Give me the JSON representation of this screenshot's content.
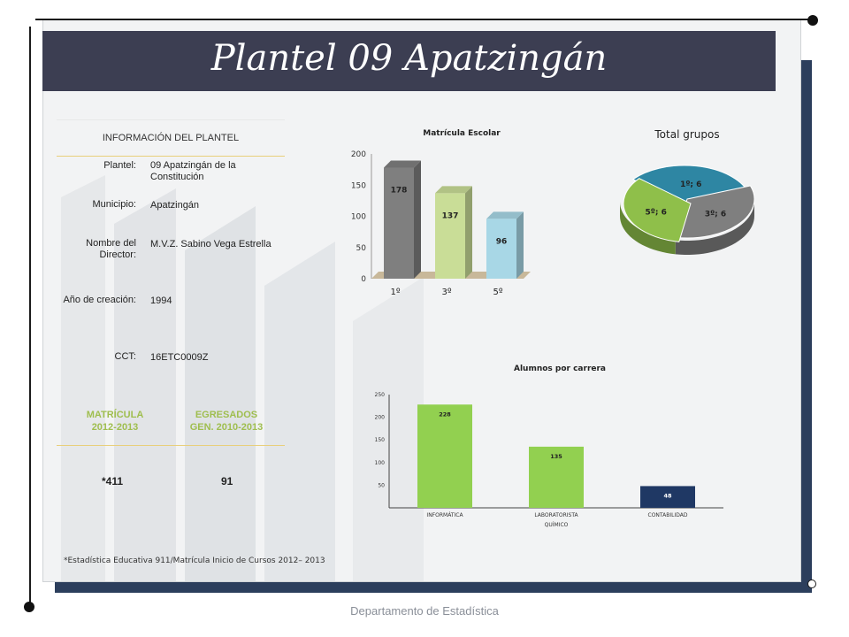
{
  "header": {
    "title": "Plantel 09 Apatzingán"
  },
  "info": {
    "heading": "INFORMACIÓN DEL PLANTEL",
    "plantel_label": "Plantel:",
    "plantel_value": "09 Apatzingán de la Constitución",
    "municipio_label": "Municipio:",
    "municipio_value": "Apatzingán",
    "director_label": "Nombre del Director:",
    "director_value": "M.V.Z. Sabino Vega Estrella",
    "anio_label": "Año de creación:",
    "anio_value": "1994",
    "cct_label": "CCT:",
    "cct_value": "16ETC0009Z"
  },
  "stats": {
    "matricula_label": "MATRÍCULA 2012-2013",
    "egresados_label": "EGRESADOS GEN. 2010-2013",
    "matricula_value": "*411",
    "egresados_value": "91"
  },
  "footnote": "*Estadística Educativa 911/Matrícula Inicio de Cursos 2012– 2013",
  "footer": "Departamento de Estadística",
  "colors": {
    "header": "#3c3e52",
    "frame_shadow": "#2c3e5c",
    "accent_green": "#9fbe4e"
  },
  "chart_data": [
    {
      "type": "bar",
      "title": "Matrícula Escolar",
      "categories": [
        "1º",
        "3º",
        "5º"
      ],
      "values": [
        178,
        137,
        96
      ],
      "yticks": [
        0,
        50,
        100,
        150,
        200
      ],
      "ylim": [
        0,
        200
      ],
      "colors": [
        "#7f7f7f",
        "#c9dd97",
        "#a8d7e6"
      ]
    },
    {
      "type": "pie",
      "title": "Total grupos",
      "labels": [
        "1º; 6",
        "3º; 6",
        "5º; 6"
      ],
      "values": [
        6,
        6,
        6
      ],
      "colors": [
        "#2e86a3",
        "#7f7f7f",
        "#8fbf4a"
      ]
    },
    {
      "type": "bar",
      "title": "Alumnos por carrera",
      "categories": [
        "INFORMÁTICA",
        "LABORATORISTA QUÍMICO",
        "CONTABILIDAD"
      ],
      "values": [
        228,
        135,
        48
      ],
      "yticks": [
        50,
        100,
        150,
        200,
        250
      ],
      "ylim": [
        0,
        250
      ],
      "colors": [
        "#92d050",
        "#92d050",
        "#1f3864"
      ]
    }
  ]
}
